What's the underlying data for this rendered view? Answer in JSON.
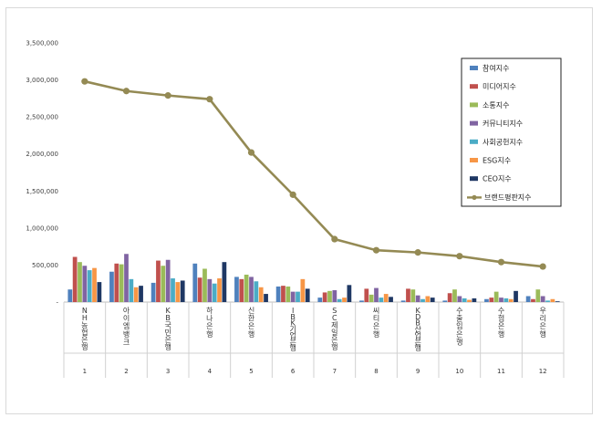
{
  "chart_data": {
    "type": "bar",
    "title": "",
    "xlabel": "",
    "ylabel": "",
    "ylim": [
      0,
      3500000
    ],
    "yticks": [
      "-",
      "500,000",
      "1,000,000",
      "1,500,000",
      "2,000,000",
      "2,500,000",
      "3,000,000",
      "3,500,000"
    ],
    "grid": false,
    "legend_position": "right",
    "categories": [
      "NH농협은행",
      "아이엠뱅크",
      "KB국민은행",
      "하나은행",
      "신한은행",
      "IBK기업은행",
      "SC제일은행",
      "씨티은행",
      "KDB산업은행",
      "수출입은행",
      "수협은행",
      "우리은행"
    ],
    "ranks": [
      "1",
      "2",
      "3",
      "4",
      "5",
      "6",
      "7",
      "8",
      "9",
      "10",
      "11",
      "12"
    ],
    "series": [
      {
        "name": "참여지수",
        "color": "#4f81bd",
        "values": [
          170000,
          410000,
          260000,
          520000,
          340000,
          210000,
          60000,
          20000,
          20000,
          20000,
          40000,
          80000
        ]
      },
      {
        "name": "미디어지수",
        "color": "#c0504d",
        "values": [
          610000,
          520000,
          560000,
          330000,
          310000,
          220000,
          130000,
          180000,
          180000,
          120000,
          60000,
          40000
        ]
      },
      {
        "name": "소통지수",
        "color": "#9bbb59",
        "values": [
          540000,
          510000,
          490000,
          450000,
          370000,
          210000,
          150000,
          100000,
          170000,
          170000,
          140000,
          170000
        ]
      },
      {
        "name": "커뮤니티지수",
        "color": "#8064a2",
        "values": [
          490000,
          650000,
          570000,
          310000,
          340000,
          140000,
          160000,
          190000,
          90000,
          80000,
          60000,
          80000
        ]
      },
      {
        "name": "사회공헌지수",
        "color": "#4bacc6",
        "values": [
          430000,
          310000,
          320000,
          250000,
          280000,
          140000,
          40000,
          60000,
          40000,
          50000,
          50000,
          20000
        ]
      },
      {
        "name": "ESG지수",
        "color": "#f79646",
        "values": [
          460000,
          200000,
          270000,
          320000,
          200000,
          310000,
          60000,
          110000,
          80000,
          30000,
          40000,
          40000
        ]
      },
      {
        "name": "CEO지수",
        "color": "#1f3864",
        "values": [
          270000,
          220000,
          290000,
          540000,
          110000,
          180000,
          230000,
          70000,
          60000,
          50000,
          150000,
          10000
        ]
      }
    ],
    "line": {
      "name": "브랜드평판지수",
      "color": "#948a54",
      "values": [
        2980000,
        2850000,
        2790000,
        2740000,
        2020000,
        1450000,
        850000,
        700000,
        670000,
        620000,
        540000,
        480000
      ]
    }
  }
}
